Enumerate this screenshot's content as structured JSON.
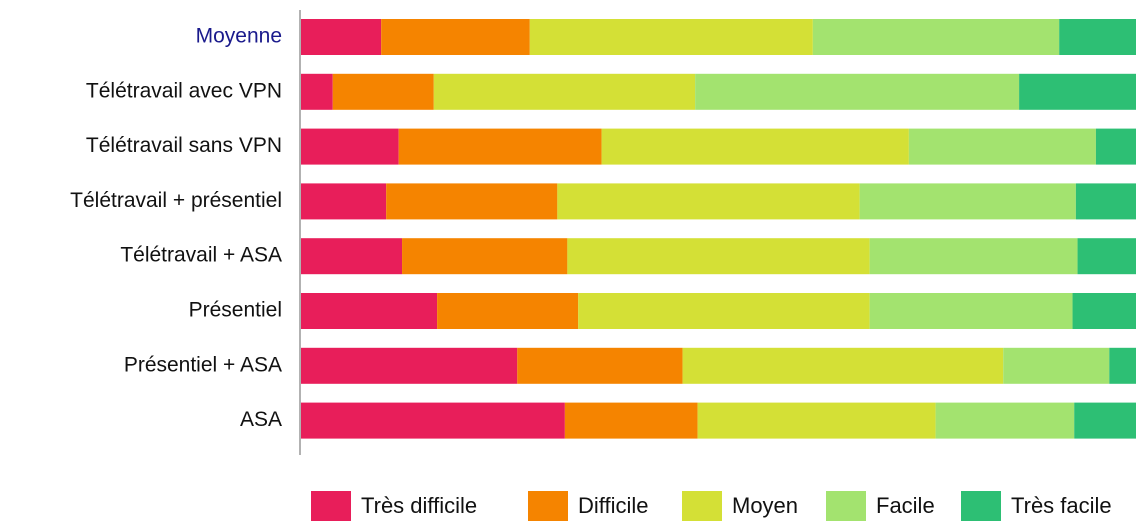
{
  "chart_data": {
    "type": "stacked-bar-horizontal",
    "categories": [
      "Moyenne",
      "Télétravail avec VPN",
      "Télétravail sans VPN",
      "Télétravail + présentiel",
      "Télétravail + ASA",
      "Présentiel",
      "Présentiel + ASA",
      "ASA"
    ],
    "series": [
      {
        "name": "Très difficile",
        "color": "#e81e5a",
        "values": [
          9.6,
          3.8,
          11.7,
          10.2,
          12.1,
          16.3,
          25.9,
          31.6
        ]
      },
      {
        "name": "Difficile",
        "color": "#f58400",
        "values": [
          17.8,
          12.1,
          24.3,
          20.5,
          19.8,
          16.9,
          19.8,
          15.9
        ]
      },
      {
        "name": "Moyen",
        "color": "#d4e036",
        "values": [
          33.9,
          31.3,
          36.8,
          36.2,
          36.2,
          34.9,
          38.4,
          28.5
        ]
      },
      {
        "name": "Facile",
        "color": "#a3e36f",
        "values": [
          29.5,
          38.8,
          22.4,
          25.9,
          24.9,
          24.3,
          12.7,
          16.6
        ]
      },
      {
        "name": "Très facile",
        "color": "#2dbf74",
        "values": [
          9.2,
          14.0,
          4.8,
          7.2,
          7.0,
          7.6,
          3.2,
          7.4
        ]
      }
    ],
    "xlim": [
      0,
      100
    ],
    "legend": "bottom"
  }
}
